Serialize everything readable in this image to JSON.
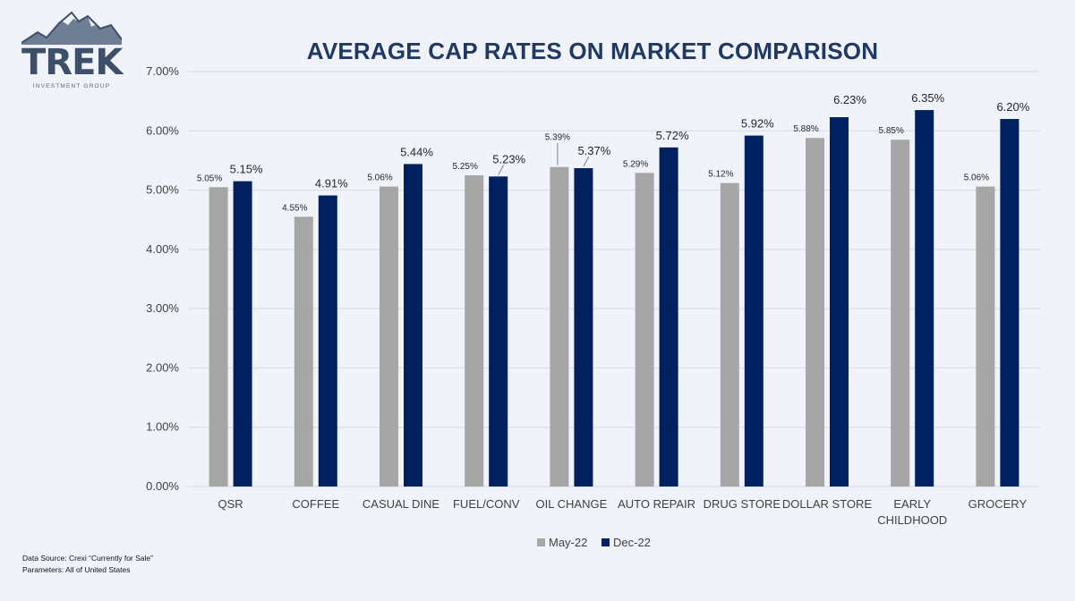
{
  "logo": {
    "name": "TREK",
    "tagline": "INVESTMENT GROUP"
  },
  "footer": {
    "source": "Data Source:  Crexi “Currently for Sale”",
    "parameters": "Parameters:   All of United States"
  },
  "chart_data": {
    "type": "bar",
    "title": "AVERAGE CAP RATES ON MARKET COMPARISON",
    "xlabel": "",
    "ylabel": "",
    "categories": [
      "QSR",
      "COFFEE",
      "CASUAL DINE",
      "FUEL/CONV",
      "OIL CHANGE",
      "AUTO REPAIR",
      "DRUG STORE",
      "DOLLAR STORE",
      "EARLY CHILDHOOD",
      "GROCERY"
    ],
    "series": [
      {
        "name": "May-22",
        "color": "#a6a6a6",
        "values": [
          5.05,
          4.55,
          5.06,
          5.25,
          5.39,
          5.29,
          5.12,
          5.88,
          5.85,
          5.06
        ]
      },
      {
        "name": "Dec-22",
        "color": "#002060",
        "values": [
          5.15,
          4.91,
          5.44,
          5.23,
          5.37,
          5.72,
          5.92,
          6.23,
          6.35,
          6.2
        ]
      }
    ],
    "ylim": [
      0,
      7
    ],
    "yticks": [
      "0.00%",
      "1.00%",
      "2.00%",
      "3.00%",
      "4.00%",
      "5.00%",
      "6.00%",
      "7.00%"
    ],
    "value_format": "percent, 2 decimals",
    "grid": true,
    "legend": "bottom-center"
  }
}
